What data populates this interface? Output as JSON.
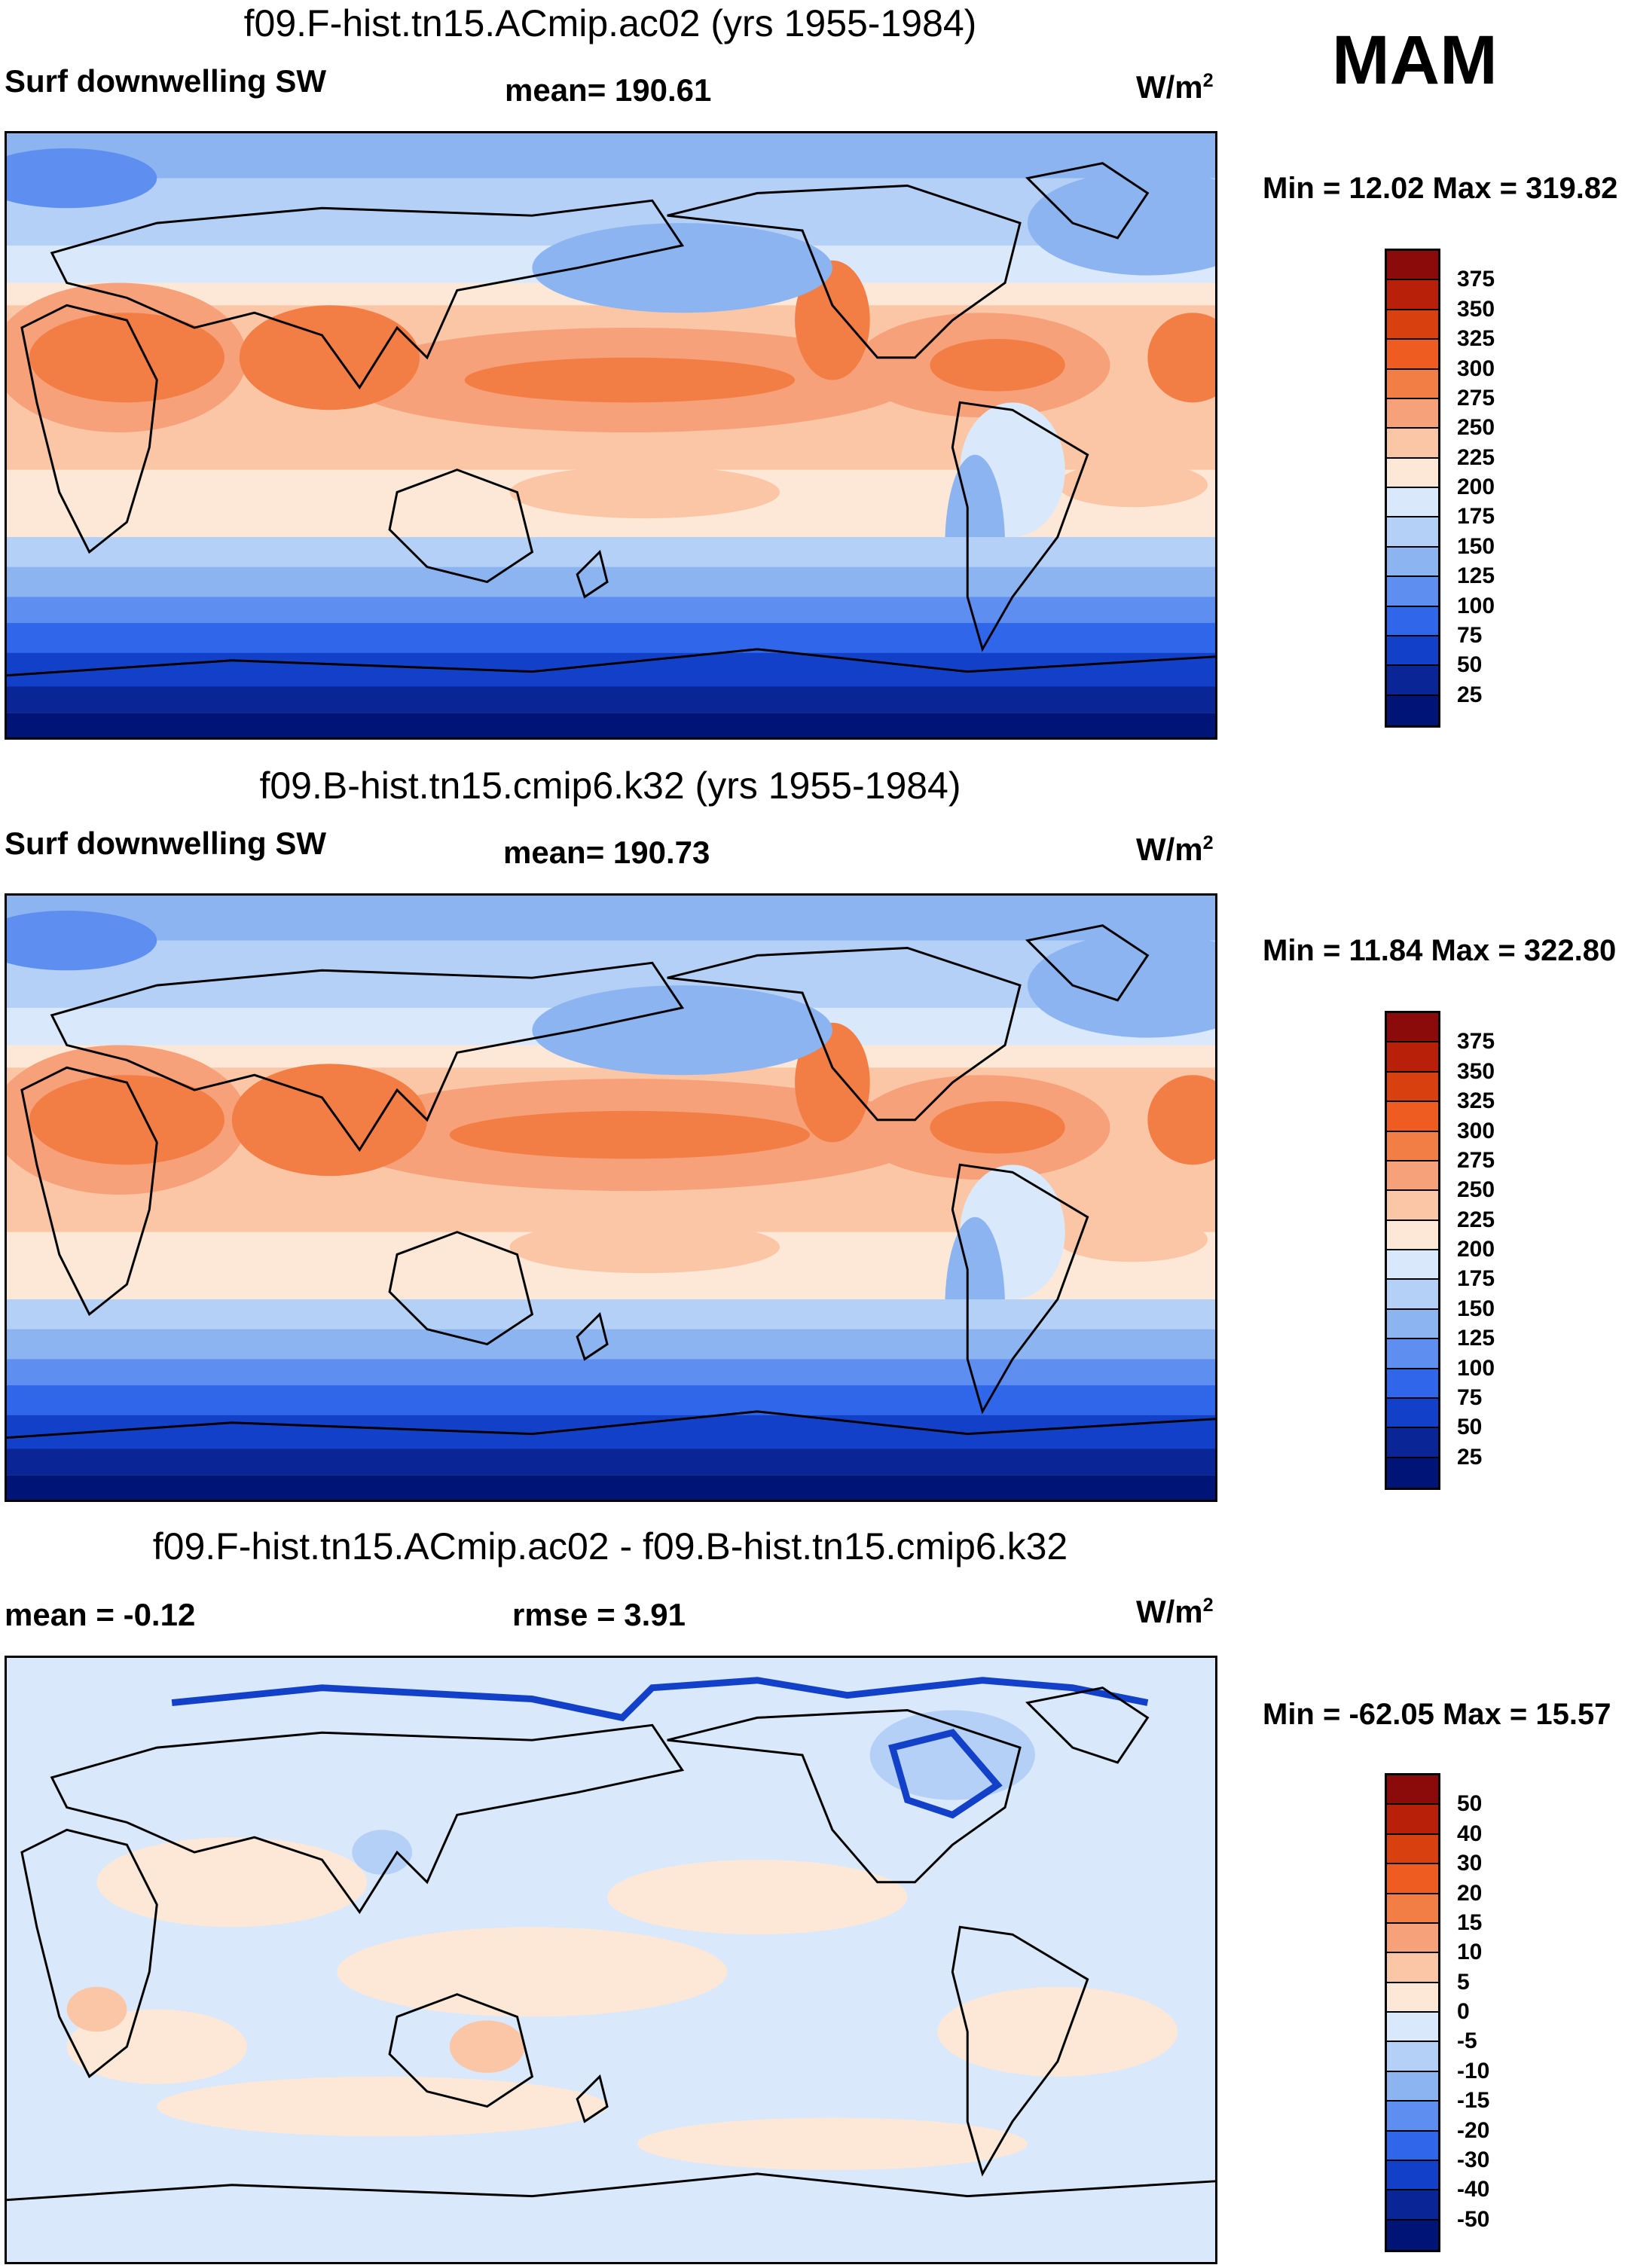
{
  "season": "MAM",
  "panels": [
    {
      "title": "f09.F-hist.tn15.ACmip.ac02 (yrs 1955-1984)",
      "variable": "Surf downwelling SW",
      "stat1": "mean= 190.61",
      "stat2": "",
      "units": "W/m",
      "units_sup": "2",
      "minmax": "Min =  12.02 Max = 319.82",
      "kind": "field"
    },
    {
      "title": "f09.B-hist.tn15.cmip6.k32 (yrs 1955-1984)",
      "variable": "Surf downwelling SW",
      "stat1": "mean= 190.73",
      "stat2": "",
      "units": "W/m",
      "units_sup": "2",
      "minmax": "Min =  11.84 Max = 322.80",
      "kind": "field"
    },
    {
      "title": "f09.F-hist.tn15.ACmip.ac02 - f09.B-hist.tn15.cmip6.k32",
      "variable": "mean =  -0.12",
      "stat1": "rmse =   3.91",
      "stat2": "",
      "units": "W/m",
      "units_sup": "2",
      "minmax": "Min = -62.05 Max =  15.57",
      "kind": "diff"
    }
  ],
  "colorbar_field": {
    "labels": [
      "375",
      "350",
      "325",
      "300",
      "275",
      "250",
      "225",
      "200",
      "175",
      "150",
      "125",
      "100",
      "75",
      "50",
      "25"
    ],
    "colors": [
      "#8b0a0a",
      "#b8200a",
      "#d8400f",
      "#ee5c22",
      "#f27d45",
      "#f6a179",
      "#fbc6a6",
      "#fde8d8",
      "#d9e8fb",
      "#b4d0f6",
      "#8cb4f0",
      "#5e8ff0",
      "#2f66ea",
      "#1240c8",
      "#0a2696",
      "#001478"
    ]
  },
  "colorbar_diff": {
    "labels": [
      "50",
      "40",
      "30",
      "20",
      "15",
      "10",
      "5",
      "0",
      "-5",
      "-10",
      "-15",
      "-20",
      "-30",
      "-40",
      "-50"
    ],
    "colors": [
      "#8b0a0a",
      "#b8200a",
      "#d8400f",
      "#ee5c22",
      "#f27d45",
      "#f6a179",
      "#fbc6a6",
      "#fde8d8",
      "#d9e8fb",
      "#b4d0f6",
      "#8cb4f0",
      "#5e8ff0",
      "#2f66ea",
      "#1240c8",
      "#0a2696",
      "#001478"
    ]
  }
}
